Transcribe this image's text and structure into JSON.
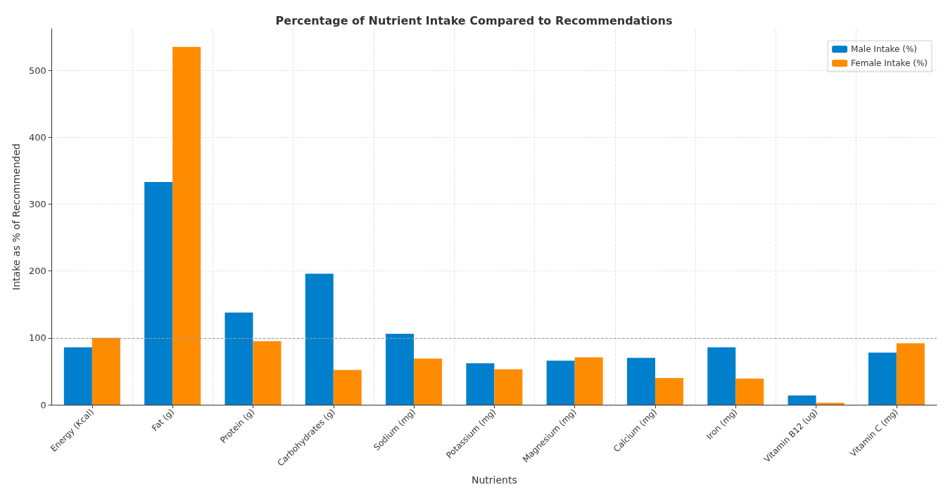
{
  "chart_data": {
    "type": "bar",
    "title": "Percentage of Nutrient Intake Compared to Recommendations",
    "xlabel": "Nutrients",
    "ylabel": "Intake as % of Recommended",
    "categories": [
      "Energy (Kcal)",
      "Fat (g)",
      "Protein (g)",
      "Carbohydrates (g)",
      "Sodium (mg)",
      "Potassium (mg)",
      "Magnesium (mg)",
      "Calcium (mg)",
      "Iron (mg)",
      "Vitamin B12 (ug)",
      "Vitamin C (mg)"
    ],
    "series": [
      {
        "name": "Male Intake (%)",
        "color": "#0080cc",
        "values": [
          86,
          333,
          138,
          196,
          106,
          62,
          66,
          70,
          86,
          14,
          78
        ]
      },
      {
        "name": "Female Intake (%)",
        "color": "#ff8c00",
        "values": [
          100,
          535,
          95,
          52,
          69,
          53,
          71,
          40,
          39,
          3,
          92
        ]
      }
    ],
    "ylim": [
      0,
      562
    ],
    "yticks": [
      0,
      100,
      200,
      300,
      400,
      500
    ],
    "grid": true,
    "legend": "top right",
    "ref_lines": [
      {
        "axis": "y",
        "value": 100,
        "color": "#999999",
        "line_style": "dashed"
      }
    ]
  }
}
